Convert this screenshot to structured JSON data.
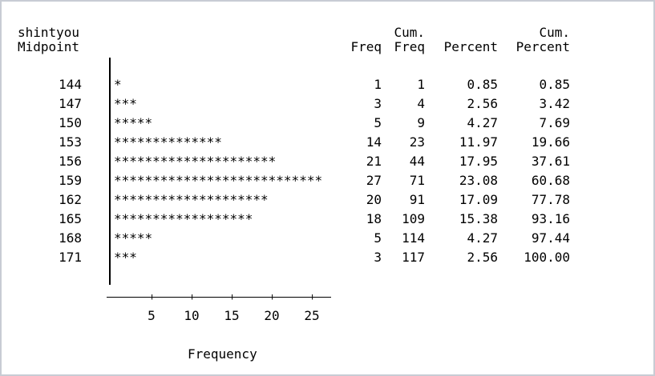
{
  "chart_data": {
    "type": "bar",
    "header": {
      "var_line1": "shintyou",
      "var_line2": "Midpoint",
      "freq": "Freq",
      "cum_freq_line1": "Cum.",
      "cum_freq_line2": "Freq",
      "percent": "Percent",
      "cum_percent_line1": "Cum.",
      "cum_percent_line2": "Percent"
    },
    "xlabel": "Frequency",
    "xticks": [
      "5",
      "10",
      "15",
      "20",
      "25"
    ],
    "bar_char": "*",
    "rows": [
      {
        "midpoint": "144",
        "freq": 1,
        "cum_freq": 1,
        "percent": "0.85",
        "cum_percent": "0.85"
      },
      {
        "midpoint": "147",
        "freq": 3,
        "cum_freq": 4,
        "percent": "2.56",
        "cum_percent": "3.42"
      },
      {
        "midpoint": "150",
        "freq": 5,
        "cum_freq": 9,
        "percent": "4.27",
        "cum_percent": "7.69"
      },
      {
        "midpoint": "153",
        "freq": 14,
        "cum_freq": 23,
        "percent": "11.97",
        "cum_percent": "19.66"
      },
      {
        "midpoint": "156",
        "freq": 21,
        "cum_freq": 44,
        "percent": "17.95",
        "cum_percent": "37.61"
      },
      {
        "midpoint": "159",
        "freq": 27,
        "cum_freq": 71,
        "percent": "23.08",
        "cum_percent": "60.68"
      },
      {
        "midpoint": "162",
        "freq": 20,
        "cum_freq": 91,
        "percent": "17.09",
        "cum_percent": "77.78"
      },
      {
        "midpoint": "165",
        "freq": 18,
        "cum_freq": 109,
        "percent": "15.38",
        "cum_percent": "93.16"
      },
      {
        "midpoint": "168",
        "freq": 5,
        "cum_freq": 114,
        "percent": "4.27",
        "cum_percent": "97.44"
      },
      {
        "midpoint": "171",
        "freq": 3,
        "cum_freq": 117,
        "percent": "2.56",
        "cum_percent": "100.00"
      }
    ]
  }
}
